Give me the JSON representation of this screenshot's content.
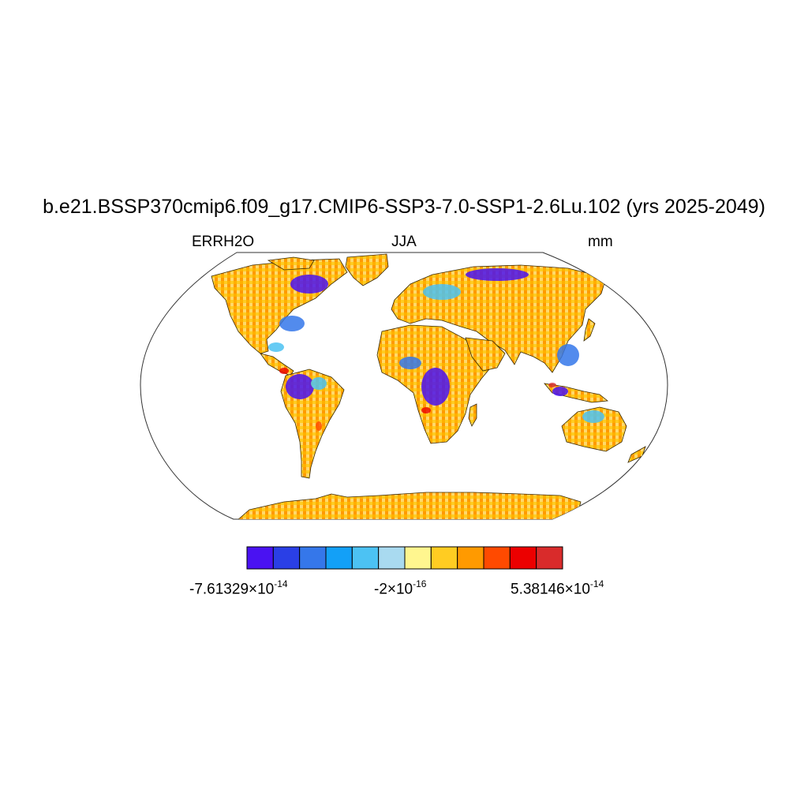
{
  "title": "b.e21.BSSP370cmip6.f09_g17.CMIP6-SSP3-7.0-SSP1-2.6Lu.102 (yrs 2025-2049)",
  "left_label": "ERRH2O",
  "center_label": "JJA",
  "right_label": "mm",
  "colorbar": {
    "colors": [
      "#4a12f2",
      "#2a3fe6",
      "#3577ea",
      "#13a0f7",
      "#4cc2f3",
      "#a9daf0",
      "#fff68f",
      "#ffcc22",
      "#ff9a00",
      "#ff4a00",
      "#ec0000",
      "#d92b2b"
    ],
    "labels": [
      {
        "mantissa": "-7.61329×10",
        "exponent": "-14"
      },
      {
        "mantissa": "-2×10",
        "exponent": "-16"
      },
      {
        "mantissa": "5.38146×10",
        "exponent": "-14"
      }
    ]
  },
  "map": {
    "projection": "robinson",
    "field": "ERRH2O",
    "season": "JJA",
    "units": "mm"
  }
}
